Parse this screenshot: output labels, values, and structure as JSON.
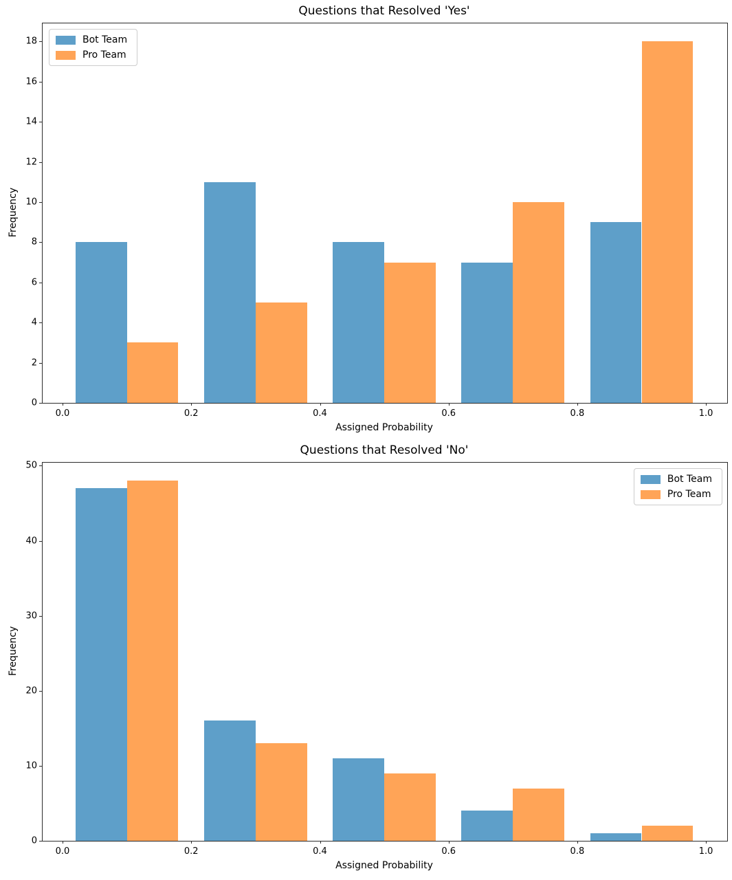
{
  "figure": {
    "background": "#ffffff",
    "text_color": "#000000",
    "spine_color": "#2b2b2b"
  },
  "chart_data": [
    {
      "type": "bar",
      "variant": "grouped-histogram",
      "title": "Questions that Resolved 'Yes'",
      "xlabel": "Assigned Probability",
      "ylabel": "Frequency",
      "legend_loc": "upper-left",
      "grid": false,
      "bin_centers": [
        0.1,
        0.3,
        0.5,
        0.7,
        0.9
      ],
      "bar_width": 0.08,
      "series": [
        {
          "name": "Bot Team",
          "color": "#5E9FC9",
          "values": [
            8,
            11,
            8,
            7,
            9
          ]
        },
        {
          "name": "Pro Team",
          "color": "#FFA457",
          "values": [
            3,
            5,
            7,
            10,
            18
          ]
        }
      ],
      "xlim": [
        -0.031,
        1.033
      ],
      "ylim": [
        0,
        18.9
      ],
      "xticks": [
        0.0,
        0.2,
        0.4,
        0.6,
        0.8,
        1.0
      ],
      "xtick_labels": [
        "0.0",
        "0.2",
        "0.4",
        "0.6",
        "0.8",
        "1.0"
      ],
      "yticks": [
        0,
        2,
        4,
        6,
        8,
        10,
        12,
        14,
        16,
        18
      ],
      "ytick_labels": [
        "0",
        "2",
        "4",
        "6",
        "8",
        "10",
        "12",
        "14",
        "16",
        "18"
      ]
    },
    {
      "type": "bar",
      "variant": "grouped-histogram",
      "title": "Questions that Resolved 'No'",
      "xlabel": "Assigned Probability",
      "ylabel": "Frequency",
      "legend_loc": "upper-right",
      "grid": false,
      "bin_centers": [
        0.1,
        0.3,
        0.5,
        0.7,
        0.9
      ],
      "bar_width": 0.08,
      "series": [
        {
          "name": "Bot Team",
          "color": "#5E9FC9",
          "values": [
            47,
            16,
            11,
            4,
            1
          ]
        },
        {
          "name": "Pro Team",
          "color": "#FFA457",
          "values": [
            48,
            13,
            9,
            7,
            2
          ]
        }
      ],
      "xlim": [
        -0.031,
        1.033
      ],
      "ylim": [
        0,
        50.4
      ],
      "xticks": [
        0.0,
        0.2,
        0.4,
        0.6,
        0.8,
        1.0
      ],
      "xtick_labels": [
        "0.0",
        "0.2",
        "0.4",
        "0.6",
        "0.8",
        "1.0"
      ],
      "yticks": [
        0,
        10,
        20,
        30,
        40,
        50
      ],
      "ytick_labels": [
        "0",
        "10",
        "20",
        "30",
        "40",
        "50"
      ]
    }
  ]
}
